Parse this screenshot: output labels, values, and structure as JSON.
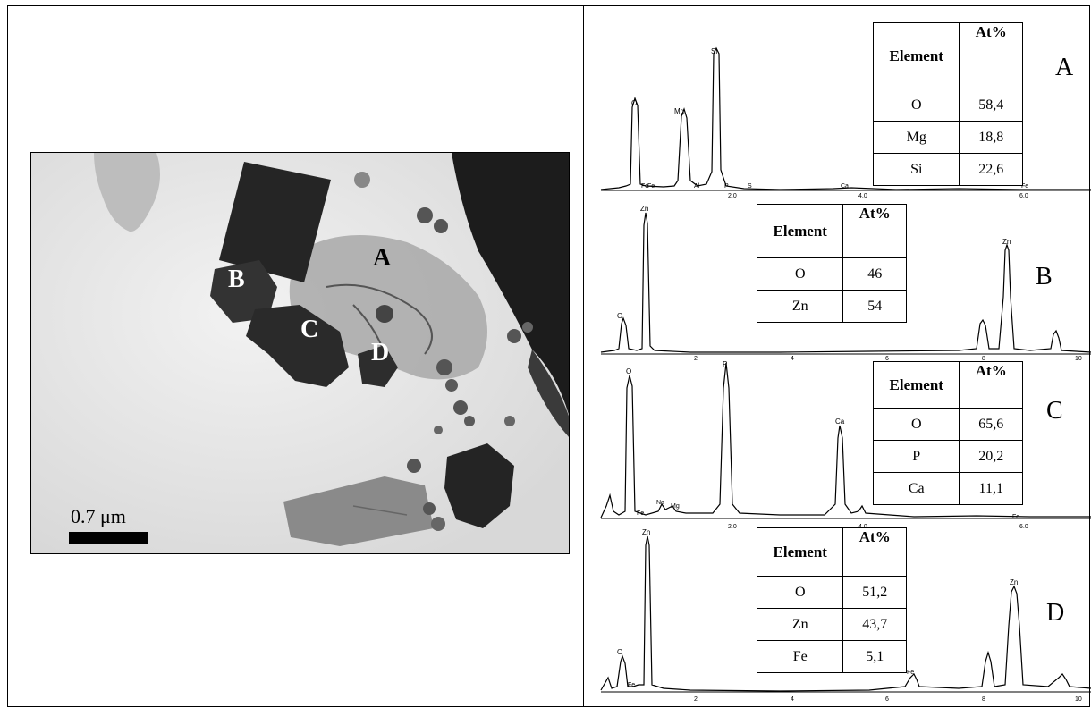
{
  "micrograph": {
    "labels": {
      "A": "A",
      "B": "B",
      "C": "C",
      "D": "D"
    },
    "scale_text": "0.7 μm"
  },
  "panels": [
    {
      "label": "A",
      "table": {
        "head": [
          "Element",
          "At%"
        ],
        "rows": [
          [
            "O",
            "58,4"
          ],
          [
            "Mg",
            "18,8"
          ],
          [
            "Si",
            "22,6"
          ]
        ]
      },
      "peak_labels": [
        "O",
        "Mg",
        "Si",
        "Fe",
        "Fe",
        "Al",
        "P",
        "S",
        "Ca",
        "Fe"
      ],
      "ticks": [
        "2.0",
        "4.0",
        "6.0"
      ]
    },
    {
      "label": "B",
      "table": {
        "head": [
          "Element",
          "At%"
        ],
        "rows": [
          [
            "O",
            "46"
          ],
          [
            "Zn",
            "54"
          ]
        ]
      },
      "peak_labels": [
        "Zn",
        "O",
        "Zn"
      ],
      "ticks": [
        "2",
        "4",
        "6",
        "8",
        "10"
      ]
    },
    {
      "label": "C",
      "table": {
        "head": [
          "Element",
          "At%"
        ],
        "rows": [
          [
            "O",
            "65,6"
          ],
          [
            "P",
            "20,2"
          ],
          [
            "Ca",
            "11,1"
          ]
        ]
      },
      "peak_labels": [
        "O",
        "P",
        "Ca",
        "Na",
        "Mg",
        "Fe",
        "Fe"
      ],
      "ticks": [
        "2.0",
        "4.0",
        "6.0"
      ]
    },
    {
      "label": "D",
      "table": {
        "head": [
          "Element",
          "At%"
        ],
        "rows": [
          [
            "O",
            "51,2"
          ],
          [
            "Zn",
            "43,7"
          ],
          [
            "Fe",
            "5,1"
          ]
        ]
      },
      "peak_labels": [
        "Zn",
        "O",
        "Fe",
        "Fe",
        "Zn"
      ],
      "ticks": [
        "2",
        "4",
        "6",
        "8",
        "10"
      ]
    }
  ]
}
